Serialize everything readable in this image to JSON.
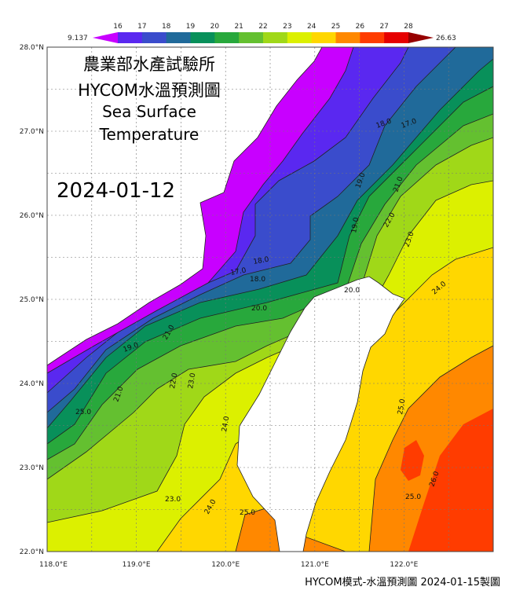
{
  "title": {
    "line1": "農業部水產試驗所",
    "line2": "HYCOM水溫預測圖",
    "line3": "Sea Surface",
    "line4": "Temperature"
  },
  "forecast_date": "2024-01-12",
  "footer": "HYCOM模式-水溫預測圖 2024-01-15製圖",
  "colorbar": {
    "min_label": "9.137",
    "max_label": "26.63",
    "ticks": [
      "16",
      "17",
      "18",
      "19",
      "20",
      "21",
      "22",
      "23",
      "24",
      "25",
      "26",
      "27",
      "28"
    ],
    "under_color": "#c800ff",
    "over_color": "#960000",
    "colors": [
      "#5a28f0",
      "#3a4ccc",
      "#206a9a",
      "#08905a",
      "#28a83c",
      "#64c030",
      "#a0d818",
      "#dcf000",
      "#ffd700",
      "#ff8800",
      "#ff3c00",
      "#e60000"
    ]
  },
  "axes": {
    "lat_labels": [
      "28.0°N",
      "27.0°N",
      "26.0°N",
      "25.0°N",
      "24.0°N",
      "23.0°N",
      "22.0°N"
    ],
    "lon_labels": [
      "118.0°E",
      "119.0°E",
      "120.0°E",
      "121.0°E",
      "122.0°E"
    ],
    "lat_range": [
      22,
      28
    ],
    "lon_range": [
      118,
      123
    ],
    "grid_step_deg": 0.5
  },
  "contour_labels": [
    "18.0",
    "17.0",
    "18.0",
    "17.0",
    "18.0",
    "19.0",
    "20.0",
    "21.0",
    "19.0",
    "21.0",
    "22.0",
    "23.0",
    "19.0",
    "22.0",
    "20.0",
    "21.0",
    "23.0",
    "24.0",
    "23.0",
    "24.0",
    "25.0",
    "24.0",
    "25.0",
    "25.0",
    "26.0",
    "25.0"
  ]
}
